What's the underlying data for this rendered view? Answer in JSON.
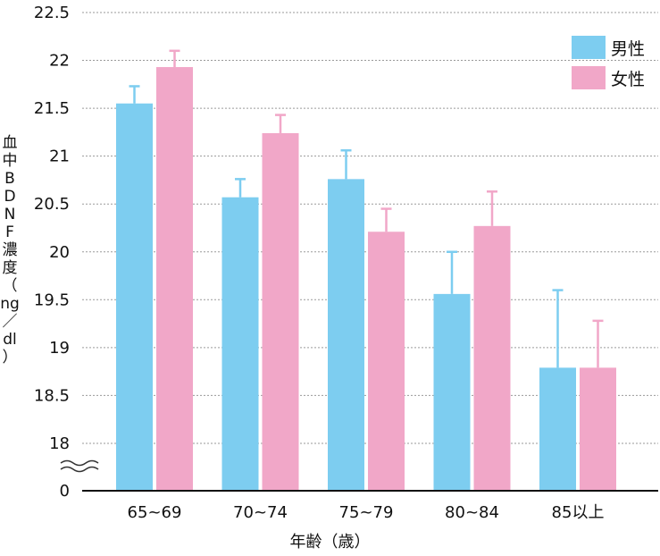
{
  "chart_data": {
    "type": "bar",
    "categories": [
      "65~69",
      "70~74",
      "75~79",
      "80~84",
      "85以上"
    ],
    "series": [
      {
        "name": "男性",
        "color": "#7dcdf0",
        "values": [
          21.55,
          20.57,
          20.76,
          19.56,
          18.79
        ],
        "error_upper": [
          21.73,
          20.76,
          21.06,
          20.0,
          19.6
        ]
      },
      {
        "name": "女性",
        "color": "#f1a7c8",
        "values": [
          21.93,
          21.24,
          20.21,
          20.27,
          18.79
        ],
        "error_upper": [
          22.1,
          21.43,
          20.45,
          20.63,
          19.28
        ]
      }
    ],
    "yticks": [
      "22.5",
      "22",
      "21.5",
      "21",
      "20.5",
      "20",
      "19.5",
      "19",
      "18.5",
      "18",
      "0"
    ],
    "ylim": [
      18,
      22.5
    ],
    "axis_break": true,
    "xlabel": "年齢（歳）",
    "ylabel": [
      "血",
      "中",
      "B",
      "D",
      "N",
      "F",
      "濃",
      "度",
      "（",
      "ng",
      "／",
      "dl",
      "）"
    ],
    "legend_position": "top-right",
    "grid": true
  }
}
